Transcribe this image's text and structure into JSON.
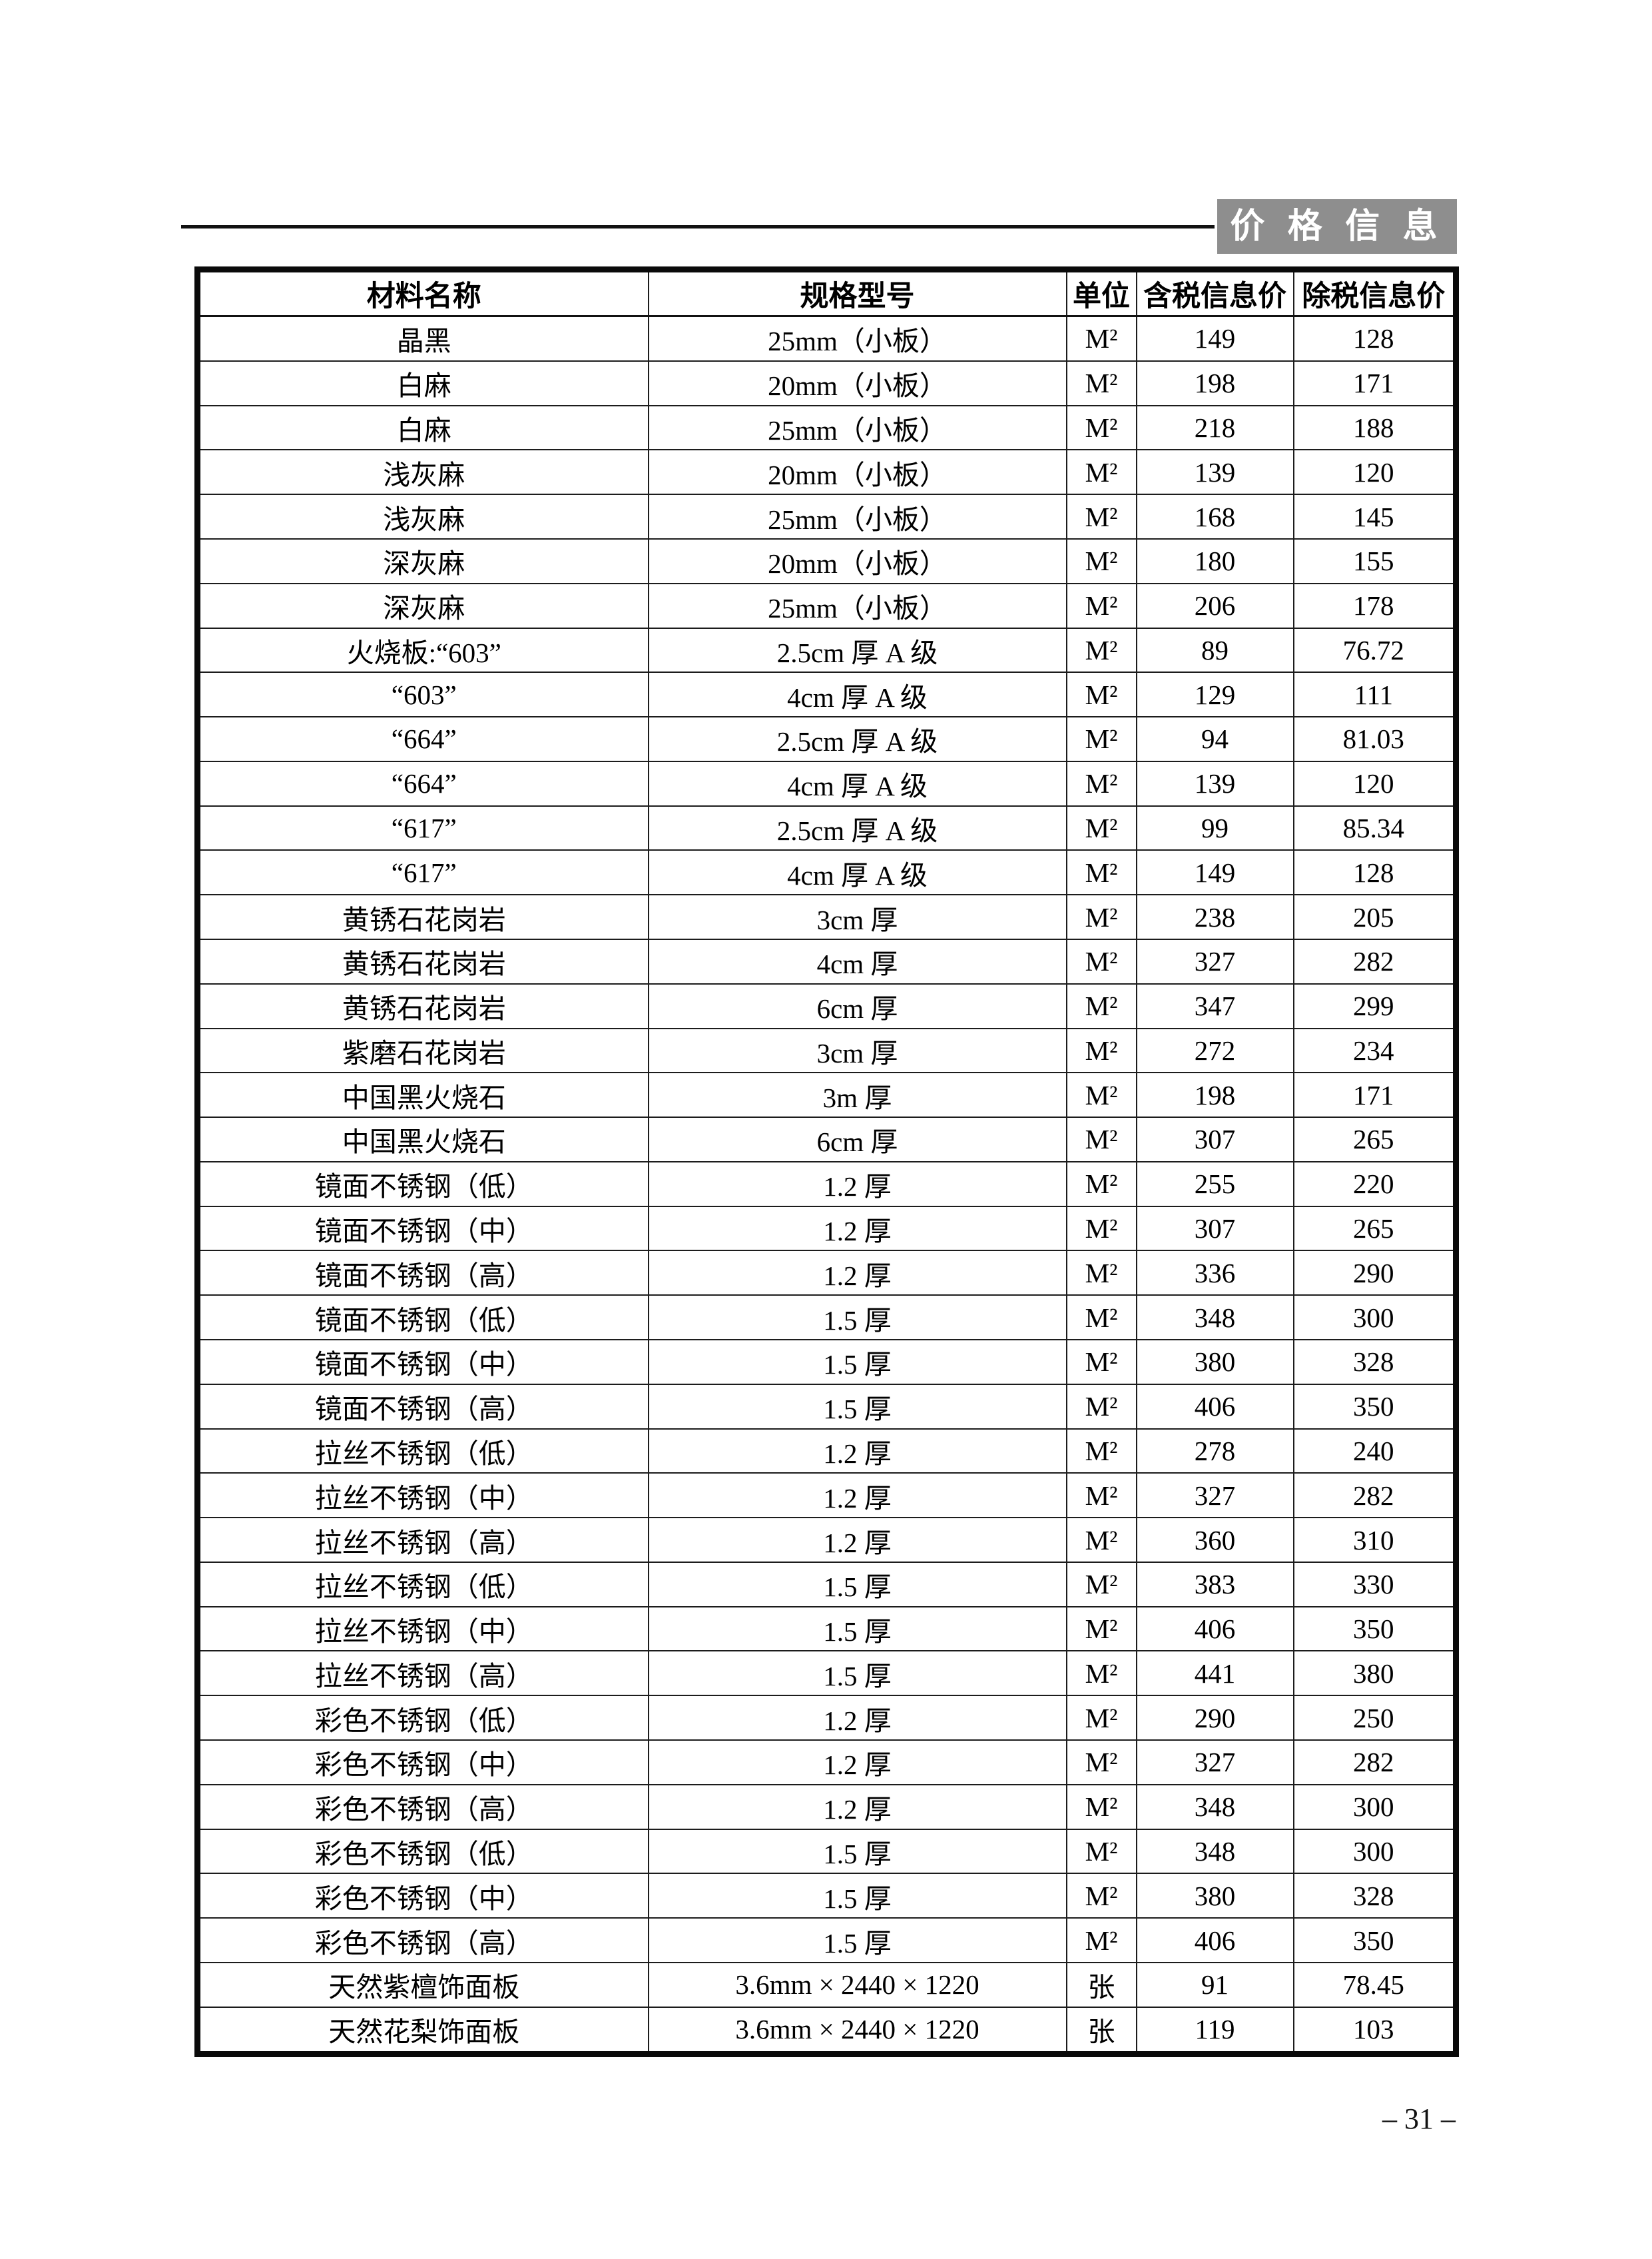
{
  "page": {
    "badge": "价  格  信  息",
    "page_number": "– 31 –"
  },
  "table": {
    "headers": [
      "材料名称",
      "规格型号",
      "单位",
      "含税信息价",
      "除税信息价"
    ],
    "rows": [
      [
        "晶黑",
        "25mm（小板）",
        "M²",
        "149",
        "128"
      ],
      [
        "白麻",
        "20mm（小板）",
        "M²",
        "198",
        "171"
      ],
      [
        "白麻",
        "25mm（小板）",
        "M²",
        "218",
        "188"
      ],
      [
        "浅灰麻",
        "20mm（小板）",
        "M²",
        "139",
        "120"
      ],
      [
        "浅灰麻",
        "25mm（小板）",
        "M²",
        "168",
        "145"
      ],
      [
        "深灰麻",
        "20mm（小板）",
        "M²",
        "180",
        "155"
      ],
      [
        "深灰麻",
        "25mm（小板）",
        "M²",
        "206",
        "178"
      ],
      [
        "火烧板:“603”",
        "2.5cm 厚 A 级",
        "M²",
        "89",
        "76.72"
      ],
      [
        "“603”",
        "4cm 厚 A 级",
        "M²",
        "129",
        "111"
      ],
      [
        "“664”",
        "2.5cm 厚 A 级",
        "M²",
        "94",
        "81.03"
      ],
      [
        "“664”",
        "4cm 厚 A 级",
        "M²",
        "139",
        "120"
      ],
      [
        "“617”",
        "2.5cm 厚 A 级",
        "M²",
        "99",
        "85.34"
      ],
      [
        "“617”",
        "4cm 厚 A 级",
        "M²",
        "149",
        "128"
      ],
      [
        "黄锈石花岗岩",
        "3cm 厚",
        "M²",
        "238",
        "205"
      ],
      [
        "黄锈石花岗岩",
        "4cm 厚",
        "M²",
        "327",
        "282"
      ],
      [
        "黄锈石花岗岩",
        "6cm 厚",
        "M²",
        "347",
        "299"
      ],
      [
        "紫磨石花岗岩",
        "3cm 厚",
        "M²",
        "272",
        "234"
      ],
      [
        "中国黑火烧石",
        "3m 厚",
        "M²",
        "198",
        "171"
      ],
      [
        "中国黑火烧石",
        "6cm 厚",
        "M²",
        "307",
        "265"
      ],
      [
        "镜面不锈钢（低）",
        "1.2 厚",
        "M²",
        "255",
        "220"
      ],
      [
        "镜面不锈钢（中）",
        "1.2 厚",
        "M²",
        "307",
        "265"
      ],
      [
        "镜面不锈钢（高）",
        "1.2 厚",
        "M²",
        "336",
        "290"
      ],
      [
        "镜面不锈钢（低）",
        "1.5 厚",
        "M²",
        "348",
        "300"
      ],
      [
        "镜面不锈钢（中）",
        "1.5 厚",
        "M²",
        "380",
        "328"
      ],
      [
        "镜面不锈钢（高）",
        "1.5 厚",
        "M²",
        "406",
        "350"
      ],
      [
        "拉丝不锈钢（低）",
        "1.2 厚",
        "M²",
        "278",
        "240"
      ],
      [
        "拉丝不锈钢（中）",
        "1.2 厚",
        "M²",
        "327",
        "282"
      ],
      [
        "拉丝不锈钢（高）",
        "1.2 厚",
        "M²",
        "360",
        "310"
      ],
      [
        "拉丝不锈钢（低）",
        "1.5 厚",
        "M²",
        "383",
        "330"
      ],
      [
        "拉丝不锈钢（中）",
        "1.5 厚",
        "M²",
        "406",
        "350"
      ],
      [
        "拉丝不锈钢（高）",
        "1.5 厚",
        "M²",
        "441",
        "380"
      ],
      [
        "彩色不锈钢（低）",
        "1.2 厚",
        "M²",
        "290",
        "250"
      ],
      [
        "彩色不锈钢（中）",
        "1.2 厚",
        "M²",
        "327",
        "282"
      ],
      [
        "彩色不锈钢（高）",
        "1.2 厚",
        "M²",
        "348",
        "300"
      ],
      [
        "彩色不锈钢（低）",
        "1.5 厚",
        "M²",
        "348",
        "300"
      ],
      [
        "彩色不锈钢（中）",
        "1.5 厚",
        "M²",
        "380",
        "328"
      ],
      [
        "彩色不锈钢（高）",
        "1.5 厚",
        "M²",
        "406",
        "350"
      ],
      [
        "天然紫檀饰面板",
        "3.6mm × 2440 × 1220",
        "张",
        "91",
        "78.45"
      ],
      [
        "天然花梨饰面板",
        "3.6mm × 2440 × 1220",
        "张",
        "119",
        "103"
      ]
    ]
  }
}
